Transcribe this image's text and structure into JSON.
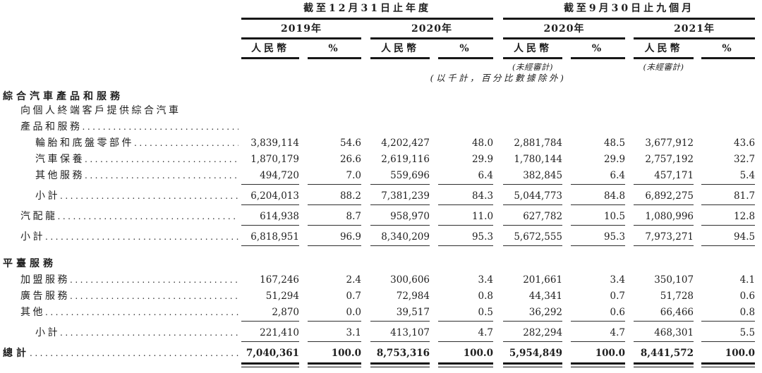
{
  "page": {
    "background": "#ffffff",
    "text_color": "#1f1f1f",
    "rule_color": "#171717"
  },
  "table": {
    "header": {
      "period_groups": [
        {
          "label": "截至12月31日止年度",
          "years": [
            "2019年",
            "2020年"
          ]
        },
        {
          "label": "截至9月30日止九個月",
          "years": [
            "2020年",
            "2021年"
          ]
        }
      ],
      "currency_label": "人民幣",
      "percent_label": "%",
      "unaudited_note": "(未經審計)",
      "unit_note": "(以千計，百分比數據除外)"
    },
    "rows": [
      {
        "type": "section",
        "label": "綜合汽車產品和服務",
        "indent": 0,
        "bold": true
      },
      {
        "type": "label",
        "label": "向個人終端客戶提供綜合汽車",
        "indent": 1,
        "leader": false
      },
      {
        "type": "label",
        "label": "產品和服務",
        "indent": 1,
        "leader": true
      },
      {
        "type": "data",
        "label": "輪胎和底盤零部件",
        "indent": 2,
        "leader": true,
        "values": [
          "3,839,114",
          "54.6",
          "4,202,427",
          "48.0",
          "2,881,784",
          "48.5",
          "3,677,912",
          "43.6"
        ]
      },
      {
        "type": "data",
        "label": "汽車保養",
        "indent": 2,
        "leader": true,
        "values": [
          "1,870,179",
          "26.6",
          "2,619,116",
          "29.9",
          "1,780,144",
          "29.9",
          "2,757,192",
          "32.7"
        ]
      },
      {
        "type": "data",
        "label": "其他服務",
        "indent": 2,
        "leader": true,
        "values": [
          "494,720",
          "7.0",
          "559,696",
          "6.4",
          "382,845",
          "6.4",
          "457,171",
          "5.4"
        ]
      },
      {
        "type": "rule"
      },
      {
        "type": "data",
        "label": "小計",
        "indent": 2,
        "leader": true,
        "values": [
          "6,204,013",
          "88.2",
          "7,381,239",
          "84.3",
          "5,044,773",
          "84.8",
          "6,892,275",
          "81.7"
        ]
      },
      {
        "type": "rule"
      },
      {
        "type": "data",
        "label": "汽配龍",
        "indent": 1,
        "leader": true,
        "values": [
          "614,938",
          "8.7",
          "958,970",
          "11.0",
          "627,782",
          "10.5",
          "1,080,996",
          "12.8"
        ]
      },
      {
        "type": "rule"
      },
      {
        "type": "data",
        "label": "小計",
        "indent": 1,
        "leader": true,
        "values": [
          "6,818,951",
          "96.9",
          "8,340,209",
          "95.3",
          "5,672,555",
          "95.3",
          "7,973,271",
          "94.5"
        ]
      },
      {
        "type": "rule"
      },
      {
        "type": "section",
        "label": "平臺服務",
        "indent": 0,
        "bold": true,
        "space_above": true
      },
      {
        "type": "data",
        "label": "加盟服務",
        "indent": 1,
        "leader": true,
        "values": [
          "167,246",
          "2.4",
          "300,606",
          "3.4",
          "201,661",
          "3.4",
          "350,107",
          "4.1"
        ]
      },
      {
        "type": "data",
        "label": "廣告服務",
        "indent": 1,
        "leader": true,
        "values": [
          "51,294",
          "0.7",
          "72,984",
          "0.8",
          "44,341",
          "0.7",
          "51,728",
          "0.6"
        ]
      },
      {
        "type": "data",
        "label": "其他",
        "indent": 1,
        "leader": true,
        "values": [
          "2,870",
          "0.0",
          "39,517",
          "0.5",
          "36,292",
          "0.6",
          "66,466",
          "0.8"
        ]
      },
      {
        "type": "rule"
      },
      {
        "type": "data",
        "label": "小計",
        "indent": 2,
        "leader": true,
        "values": [
          "221,410",
          "3.1",
          "413,107",
          "4.7",
          "282,294",
          "4.7",
          "468,301",
          "5.5"
        ]
      },
      {
        "type": "rule"
      },
      {
        "type": "data",
        "label": "總計",
        "indent": 0,
        "bold": true,
        "leader": true,
        "values": [
          "7,040,361",
          "100.0",
          "8,753,316",
          "100.0",
          "5,954,849",
          "100.0",
          "8,441,572",
          "100.0"
        ]
      },
      {
        "type": "double_rule"
      }
    ]
  }
}
